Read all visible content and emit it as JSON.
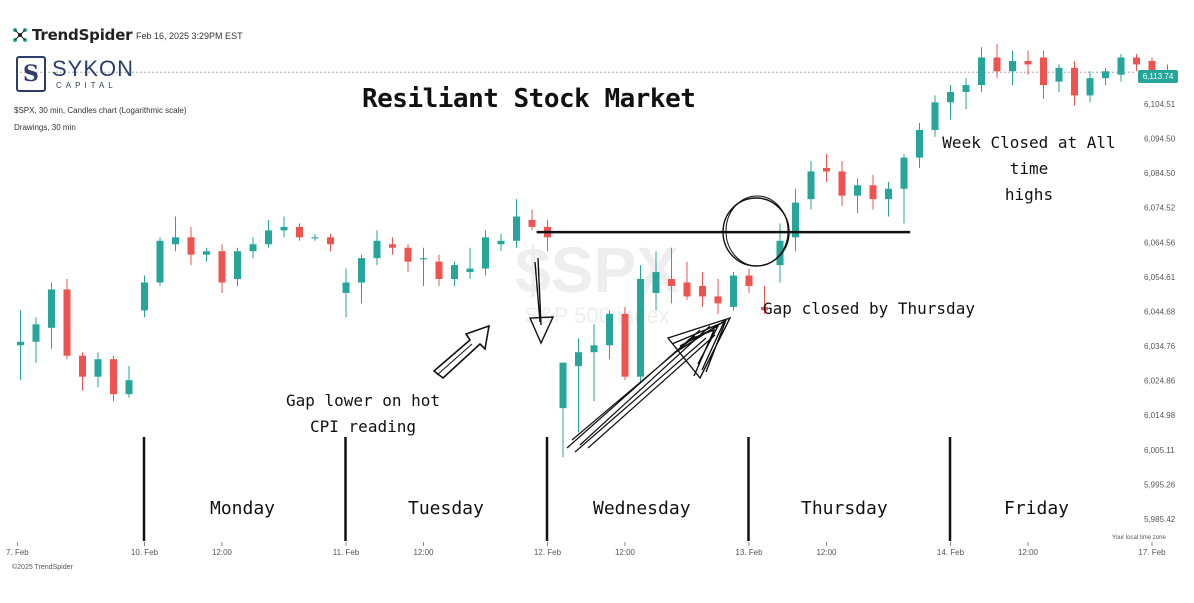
{
  "header": {
    "brand": "TrendSpider",
    "timestamp": "Feb 16, 2025 3:29PM EST",
    "company_name": "SYKON",
    "company_sub": "CAPITAL",
    "symbol_desc": "$SPX, 30 min, Candles chart (Logarithmic scale)",
    "drawings_desc": "Drawings, 30 min",
    "watermark_symbol": "$SPX",
    "watermark_name": "S&P 500 index",
    "copyright": "©2025 TrendSpider",
    "timezone_note": "Your local time zone"
  },
  "annotations": {
    "title": "Resiliant Stock Market",
    "gap_lower_line1": "Gap lower on hot",
    "gap_lower_line2": "CPI reading",
    "gap_closed": "Gap closed by Thursday",
    "week_closed_line1": "Week Closed at All time",
    "week_closed_line2": "highs"
  },
  "days": [
    "Monday",
    "Tuesday",
    "Wednesday",
    "Thursday",
    "Friday"
  ],
  "colors": {
    "up": "#26a69a",
    "down": "#ef5350",
    "annotation": "#111111",
    "last_price_tag": "#26a69a"
  },
  "chart_data": {
    "type": "candlestick",
    "title": "Resiliant Stock Market",
    "y_scale": "log",
    "ylim": [
      5980,
      6122
    ],
    "y_ticks": [
      "6,104.51",
      "6,094.50",
      "6,084.50",
      "6,074.52",
      "6,064.56",
      "6,054.61",
      "6,044.68",
      "6,034.76",
      "6,024.86",
      "6,014.98",
      "6,005.11",
      "5,995.26",
      "5,985.42"
    ],
    "y_tick_values": [
      6104.51,
      6094.5,
      6084.5,
      6074.52,
      6064.56,
      6054.61,
      6044.68,
      6034.76,
      6024.86,
      6014.98,
      6005.11,
      5995.26,
      5985.42
    ],
    "x_ticks": [
      "7. Feb",
      "10. Feb",
      "12:00",
      "11. Feb",
      "12:00",
      "12. Feb",
      "12:00",
      "13. Feb",
      "12:00",
      "14. Feb",
      "12:00",
      "17. Feb"
    ],
    "x_tick_index": [
      -0.2,
      8,
      13,
      21,
      26,
      34,
      39,
      47,
      52,
      60,
      65,
      73
    ],
    "last_price": "6,113.74",
    "last_price_value": 6113.74,
    "horizontal_line_level": 6067.5,
    "day_separator_index": [
      8,
      21,
      34,
      47,
      60
    ],
    "candles": [
      {
        "o": 6035,
        "h": 6045,
        "l": 6025,
        "c": 6036
      },
      {
        "o": 6036,
        "h": 6043,
        "l": 6030,
        "c": 6041
      },
      {
        "o": 6040,
        "h": 6053,
        "l": 6034,
        "c": 6051
      },
      {
        "o": 6051,
        "h": 6054,
        "l": 6031,
        "c": 6032
      },
      {
        "o": 6032,
        "h": 6033,
        "l": 6022,
        "c": 6026
      },
      {
        "o": 6026,
        "h": 6033,
        "l": 6023,
        "c": 6031
      },
      {
        "o": 6031,
        "h": 6032,
        "l": 6019,
        "c": 6021
      },
      {
        "o": 6021,
        "h": 6029,
        "l": 6020,
        "c": 6025
      },
      {
        "o": 6045,
        "h": 6055,
        "l": 6043,
        "c": 6053
      },
      {
        "o": 6053,
        "h": 6066,
        "l": 6052,
        "c": 6065
      },
      {
        "o": 6064,
        "h": 6072,
        "l": 6062,
        "c": 6066
      },
      {
        "o": 6066,
        "h": 6069,
        "l": 6058,
        "c": 6061
      },
      {
        "o": 6061,
        "h": 6063,
        "l": 6059,
        "c": 6062
      },
      {
        "o": 6062,
        "h": 6064,
        "l": 6050,
        "c": 6053
      },
      {
        "o": 6054,
        "h": 6063,
        "l": 6052,
        "c": 6062
      },
      {
        "o": 6062,
        "h": 6066,
        "l": 6060,
        "c": 6064
      },
      {
        "o": 6064,
        "h": 6071,
        "l": 6063,
        "c": 6068
      },
      {
        "o": 6068,
        "h": 6072,
        "l": 6066,
        "c": 6069
      },
      {
        "o": 6069,
        "h": 6070,
        "l": 6065,
        "c": 6066
      },
      {
        "o": 6066,
        "h": 6067,
        "l": 6065,
        "c": 6066
      },
      {
        "o": 6066,
        "h": 6067,
        "l": 6062,
        "c": 6064
      },
      {
        "o": 6050,
        "h": 6057,
        "l": 6043,
        "c": 6053
      },
      {
        "o": 6053,
        "h": 6061,
        "l": 6047,
        "c": 6060
      },
      {
        "o": 6060,
        "h": 6068,
        "l": 6058,
        "c": 6065
      },
      {
        "o": 6064,
        "h": 6066,
        "l": 6061,
        "c": 6063
      },
      {
        "o": 6063,
        "h": 6064,
        "l": 6056,
        "c": 6059
      },
      {
        "o": 6060,
        "h": 6063,
        "l": 6052,
        "c": 6060
      },
      {
        "o": 6059,
        "h": 6061,
        "l": 6052,
        "c": 6054
      },
      {
        "o": 6054,
        "h": 6059,
        "l": 6052,
        "c": 6058
      },
      {
        "o": 6056,
        "h": 6063,
        "l": 6054,
        "c": 6057
      },
      {
        "o": 6057,
        "h": 6068,
        "l": 6055,
        "c": 6066
      },
      {
        "o": 6064,
        "h": 6067,
        "l": 6062,
        "c": 6065
      },
      {
        "o": 6065,
        "h": 6077,
        "l": 6063,
        "c": 6072
      },
      {
        "o": 6071,
        "h": 6074,
        "l": 6068,
        "c": 6069
      },
      {
        "o": 6069,
        "h": 6071,
        "l": 6062,
        "c": 6066
      },
      {
        "o": 6017,
        "h": 6030,
        "l": 6003,
        "c": 6030
      },
      {
        "o": 6029,
        "h": 6037,
        "l": 6010,
        "c": 6033
      },
      {
        "o": 6033,
        "h": 6041,
        "l": 6019,
        "c": 6035
      },
      {
        "o": 6035,
        "h": 6045,
        "l": 6031,
        "c": 6044
      },
      {
        "o": 6044,
        "h": 6046,
        "l": 6025,
        "c": 6026
      },
      {
        "o": 6026,
        "h": 6058,
        "l": 6024,
        "c": 6054
      },
      {
        "o": 6050,
        "h": 6062,
        "l": 6045,
        "c": 6056
      },
      {
        "o": 6054,
        "h": 6063,
        "l": 6047,
        "c": 6052
      },
      {
        "o": 6053,
        "h": 6059,
        "l": 6048,
        "c": 6049
      },
      {
        "o": 6052,
        "h": 6056,
        "l": 6046,
        "c": 6049
      },
      {
        "o": 6049,
        "h": 6054,
        "l": 6044,
        "c": 6047
      },
      {
        "o": 6046,
        "h": 6056,
        "l": 6045,
        "c": 6055
      },
      {
        "o": 6055,
        "h": 6057,
        "l": 6050,
        "c": 6052
      },
      {
        "o": 6046,
        "h": 6052,
        "l": 6044,
        "c": 6045
      },
      {
        "o": 6058,
        "h": 6070,
        "l": 6053,
        "c": 6065
      },
      {
        "o": 6066,
        "h": 6080,
        "l": 6062,
        "c": 6076
      },
      {
        "o": 6077,
        "h": 6088,
        "l": 6074,
        "c": 6085
      },
      {
        "o": 6086,
        "h": 6090,
        "l": 6082,
        "c": 6085
      },
      {
        "o": 6085,
        "h": 6088,
        "l": 6075,
        "c": 6078
      },
      {
        "o": 6078,
        "h": 6083,
        "l": 6073,
        "c": 6081
      },
      {
        "o": 6081,
        "h": 6084,
        "l": 6074,
        "c": 6077
      },
      {
        "o": 6077,
        "h": 6082,
        "l": 6072,
        "c": 6080
      },
      {
        "o": 6080,
        "h": 6090,
        "l": 6070,
        "c": 6089
      },
      {
        "o": 6089,
        "h": 6099,
        "l": 6086,
        "c": 6097
      },
      {
        "o": 6097,
        "h": 6107,
        "l": 6095,
        "c": 6105
      },
      {
        "o": 6105,
        "h": 6110,
        "l": 6100,
        "c": 6108
      },
      {
        "o": 6108,
        "h": 6112,
        "l": 6103,
        "c": 6110
      },
      {
        "o": 6110,
        "h": 6121,
        "l": 6108,
        "c": 6118
      },
      {
        "o": 6118,
        "h": 6122,
        "l": 6112,
        "c": 6114
      },
      {
        "o": 6114,
        "h": 6120,
        "l": 6110,
        "c": 6117
      },
      {
        "o": 6117,
        "h": 6120,
        "l": 6113,
        "c": 6116
      },
      {
        "o": 6118,
        "h": 6120,
        "l": 6106,
        "c": 6110
      },
      {
        "o": 6111,
        "h": 6116,
        "l": 6108,
        "c": 6115
      },
      {
        "o": 6115,
        "h": 6117,
        "l": 6104,
        "c": 6107
      },
      {
        "o": 6107,
        "h": 6114,
        "l": 6105,
        "c": 6112
      },
      {
        "o": 6112,
        "h": 6115,
        "l": 6110,
        "c": 6114
      },
      {
        "o": 6113,
        "h": 6119,
        "l": 6111,
        "c": 6118
      },
      {
        "o": 6118,
        "h": 6119,
        "l": 6114,
        "c": 6116
      },
      {
        "o": 6117,
        "h": 6118,
        "l": 6111,
        "c": 6112
      },
      {
        "o": 6113,
        "h": 6116,
        "l": 6112,
        "c": 6113.7
      }
    ]
  }
}
